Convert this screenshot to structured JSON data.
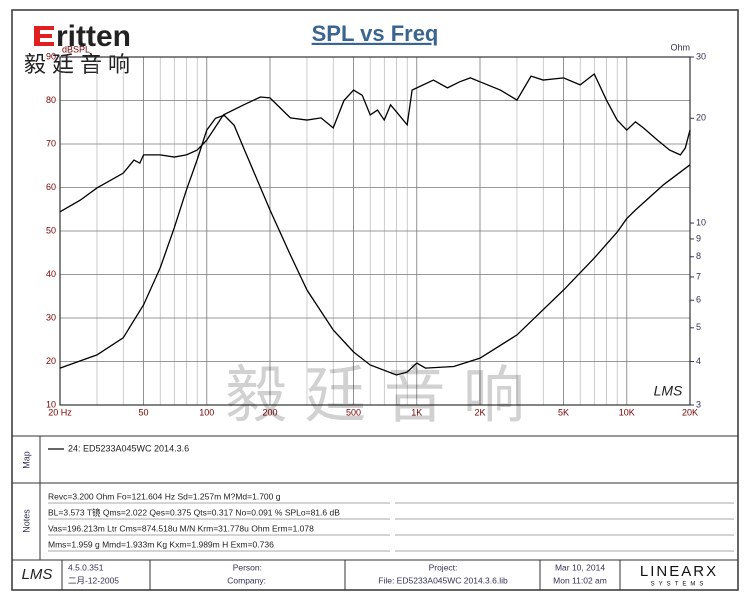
{
  "logo": {
    "brand": "ritten",
    "chinese": "毅廷音响"
  },
  "watermark": "毅 廷 音 响",
  "chart_data": {
    "type": "line",
    "title": "SPL vs Freq",
    "y_label": "dBSPL",
    "y2_label": "Ohm",
    "x_log": true,
    "y2_log": true,
    "grid": true,
    "xlim": [
      20,
      20000
    ],
    "ylim": [
      10,
      90
    ],
    "y2lim": [
      3,
      30
    ],
    "xticks": [
      {
        "value": 20,
        "label": "20 Hz"
      },
      50,
      100,
      200,
      500,
      {
        "value": 1000,
        "label": "1K"
      },
      {
        "value": 2000,
        "label": "2K"
      },
      {
        "value": 5000,
        "label": "5K"
      },
      {
        "value": 10000,
        "label": "10K"
      },
      {
        "value": 20000,
        "label": "20K"
      }
    ],
    "xgrid": [
      30,
      40,
      60,
      70,
      80,
      90,
      300,
      400,
      600,
      700,
      800,
      900,
      3000,
      4000,
      6000,
      7000,
      8000,
      9000
    ],
    "yticks": [
      10,
      20,
      30,
      40,
      50,
      60,
      70,
      80,
      90
    ],
    "y2ticks": [
      3,
      4,
      5,
      6,
      7,
      8,
      9,
      10,
      20,
      30
    ],
    "legend_label": "24: ED5233A045WC   2014.3.6",
    "mark_logo": "LMS",
    "series": [
      {
        "color": "#000000",
        "axis": "y",
        "x": [
          20,
          25,
          30,
          40,
          45,
          48,
          50,
          60,
          70,
          80,
          90,
          100,
          120,
          150,
          180,
          200,
          250,
          300,
          350,
          400,
          450,
          500,
          550,
          600,
          650,
          700,
          750,
          800,
          900,
          950,
          1000,
          1200,
          1400,
          1600,
          1800,
          2000,
          2500,
          3000,
          3500,
          4000,
          5000,
          6000,
          7000,
          8000,
          9000,
          10000,
          11000,
          12000,
          14000,
          16000,
          18000,
          19000,
          20000
        ],
        "values": [
          54.4,
          57.1,
          59.9,
          63.3,
          66.3,
          65.6,
          67.5,
          67.5,
          67,
          67.5,
          68.6,
          70.9,
          76.7,
          79,
          80.8,
          80.6,
          76,
          75.5,
          76,
          73.7,
          80,
          82.4,
          81.2,
          76.7,
          77.8,
          75.5,
          79,
          77.4,
          74.4,
          82.4,
          82.9,
          84.7,
          82.9,
          84.3,
          85.2,
          84.3,
          82.4,
          80.1,
          85.6,
          84.7,
          85.2,
          83.6,
          86.1,
          80.1,
          75.5,
          73.2,
          75.1,
          73.7,
          70.9,
          68.6,
          67.5,
          69.1,
          73.2
        ]
      },
      {
        "color": "#000000",
        "axis": "y2",
        "x": [
          20,
          30,
          40,
          50,
          60,
          70,
          80,
          90,
          100,
          110,
          121,
          135,
          150,
          200,
          250,
          300,
          400,
          500,
          600,
          800,
          900,
          1000,
          1100,
          1500,
          2000,
          3000,
          5000,
          7000,
          9000,
          10000,
          11000,
          15000,
          20000
        ],
        "values": [
          3.83,
          4.18,
          4.68,
          5.82,
          7.43,
          9.69,
          12.45,
          15.2,
          18.5,
          20,
          20.4,
          19.1,
          16.4,
          10.9,
          8.1,
          6.42,
          4.93,
          4.26,
          3.91,
          3.66,
          3.73,
          3.96,
          3.83,
          3.87,
          4.09,
          4.77,
          6.42,
          7.93,
          9.42,
          10.3,
          10.9,
          12.9,
          14.7
        ]
      }
    ]
  },
  "map": {
    "label": "Map"
  },
  "notes": {
    "label": "Notes",
    "lines": [
      "Revc=3.200 Ohm  Fo=121.604 Hz  Sd=1.257m M?Md=1.700 g",
      "BL=3.573 T镜  Qms=2.022  Qes=0.375  Qts=0.317  No=0.091 %  SPLo=81.6 dB",
      "Vas=196.213m Ltr  Cms=874.518u M/N  Krm=31.778u Ohm  Erm=1.078",
      "Mms=1.959 g  Mmd=1.933m Kg  Kxm=1.989m H  Exm=0.736"
    ]
  },
  "footer": {
    "logo": "LMS",
    "version": "4.5.0.351",
    "build_date": "二月-12-2005",
    "person": "Person:",
    "company": "Company:",
    "project": "Project:",
    "file": "File: ED5233A045WC  2014.3.6.lib",
    "date": "Mar 10, 2014",
    "time": "Mon 11:02 am",
    "brand": "LINEARX",
    "brand_sub": "SYSTEMS"
  }
}
